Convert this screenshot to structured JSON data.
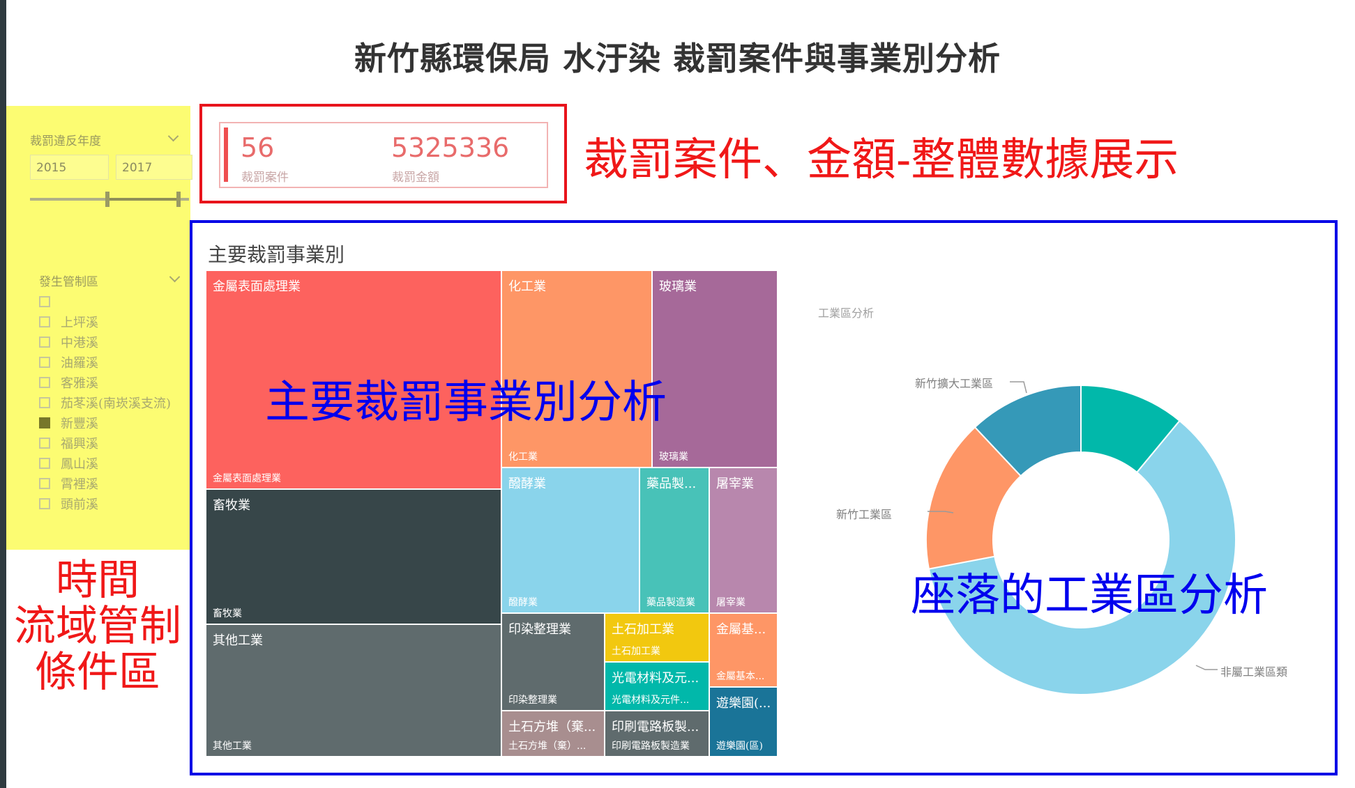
{
  "page_title": "新竹縣環保局 水汙染 裁罰案件與事業別分析",
  "filters": {
    "year": {
      "label": "裁罰違反年度",
      "from": "2015",
      "to": "2017",
      "range": [
        2015,
        2017
      ]
    },
    "district": {
      "label": "發生管制區",
      "options": [
        {
          "label": "",
          "checked": false
        },
        {
          "label": "上坪溪",
          "checked": false
        },
        {
          "label": "中港溪",
          "checked": false
        },
        {
          "label": "油羅溪",
          "checked": false
        },
        {
          "label": "客雅溪",
          "checked": false
        },
        {
          "label": "茄苳溪(南崁溪支流)",
          "checked": false
        },
        {
          "label": "新豐溪",
          "checked": true
        },
        {
          "label": "福興溪",
          "checked": false
        },
        {
          "label": "鳳山溪",
          "checked": false
        },
        {
          "label": "霄裡溪",
          "checked": false
        },
        {
          "label": "頭前溪",
          "checked": false
        }
      ]
    }
  },
  "kpi": {
    "cases_value": "56",
    "cases_label": "裁罰案件",
    "amount_value": "5325336",
    "amount_label": "裁罰金額"
  },
  "annotations": {
    "kpi": "裁罰案件、金額-整體數據展示",
    "conditions": [
      "時間",
      "流域管制",
      "條件區"
    ],
    "treemap": "主要裁罰事業別分析",
    "donut": "座落的工業區分析"
  },
  "treemap": {
    "title": "主要裁罰事業別",
    "tiles": [
      {
        "label": "金屬表面處理業",
        "bottom": "金屬表面處理業",
        "color": "#fd625e"
      },
      {
        "label": "化工業",
        "bottom": "化工業",
        "color": "#fe9666"
      },
      {
        "label": "玻璃業",
        "bottom": "玻璃業",
        "color": "#a66999"
      },
      {
        "label": "畜牧業",
        "bottom": "畜牧業",
        "color": "#374649"
      },
      {
        "label": "醱酵業",
        "bottom": "醱酵業",
        "color": "#8ad4eb"
      },
      {
        "label": "藥品製...",
        "bottom": "藥品製造業",
        "color": "#48c2b8"
      },
      {
        "label": "屠宰業",
        "bottom": "屠宰業",
        "color": "#b887ad"
      },
      {
        "label": "其他工業",
        "bottom": "其他工業",
        "color": "#5f6b6d"
      },
      {
        "label": "印染整理業",
        "bottom": "印染整理業",
        "color": "#5f6b6d"
      },
      {
        "label": "土石加工業",
        "bottom": "土石加工業",
        "color": "#f2c80f"
      },
      {
        "label": "金屬基...",
        "bottom": "金屬基本...",
        "color": "#fe9666"
      },
      {
        "label": "光電材料及元...",
        "bottom": "光電材料及元件...",
        "color": "#01b8aa"
      },
      {
        "label": "遊樂園(...",
        "bottom": "遊樂園(區)",
        "color": "#1a7498"
      },
      {
        "label": "土石方堆（棄...",
        "bottom": "土石方堆（棄）...",
        "color": "#a88e8f"
      },
      {
        "label": "印刷電路板製...",
        "bottom": "印刷電路板製造業",
        "color": "#5f6b6d"
      }
    ]
  },
  "donut": {
    "title": "工業區分析",
    "segments": [
      {
        "name": "",
        "value": 11,
        "color": "#01b8aa"
      },
      {
        "name": "非屬工業區類",
        "value": 61,
        "color": "#8ad4eb"
      },
      {
        "name": "新竹工業區",
        "value": 16,
        "color": "#fe9666"
      },
      {
        "name": "新竹擴大工業區",
        "value": 12,
        "color": "#3599b8"
      }
    ]
  }
}
